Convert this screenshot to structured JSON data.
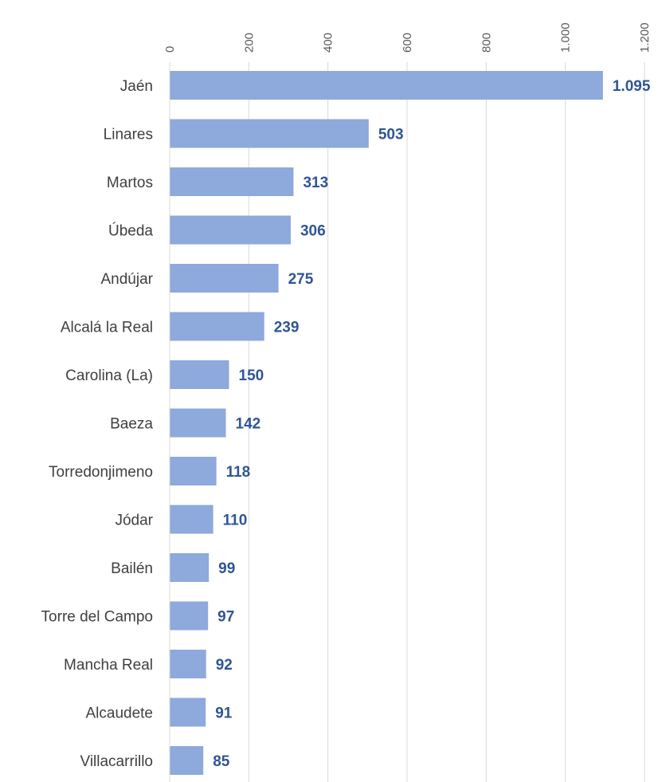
{
  "chart_data": {
    "type": "bar",
    "orientation": "horizontal",
    "title": "",
    "xlabel": "",
    "ylabel": "",
    "xlim": [
      0,
      1200
    ],
    "x_ticks": [
      0,
      200,
      400,
      600,
      800,
      1000,
      1200
    ],
    "x_tick_labels": [
      "0",
      "200",
      "400",
      "600",
      "800",
      "1.000",
      "1.200"
    ],
    "axis_position": "top",
    "tick_label_rotation": "vertical",
    "grid": true,
    "legend": "none",
    "categories": [
      "Jaén",
      "Linares",
      "Martos",
      "Úbeda",
      "Andújar",
      "Alcalá la Real",
      "Carolina (La)",
      "Baeza",
      "Torredonjimeno",
      "Jódar",
      "Bailén",
      "Torre del Campo",
      "Mancha Real",
      "Alcaudete",
      "Villacarrillo"
    ],
    "values": [
      1095,
      503,
      313,
      306,
      275,
      239,
      150,
      142,
      118,
      110,
      99,
      97,
      92,
      91,
      85
    ],
    "value_labels": [
      "1.095",
      "503",
      "313",
      "306",
      "275",
      "239",
      "150",
      "142",
      "118",
      "110",
      "99",
      "97",
      "92",
      "91",
      "85"
    ],
    "colors": {
      "bar": "#8EA9DB",
      "value_label": "#2F5597",
      "grid": "#D9D9D9"
    }
  }
}
